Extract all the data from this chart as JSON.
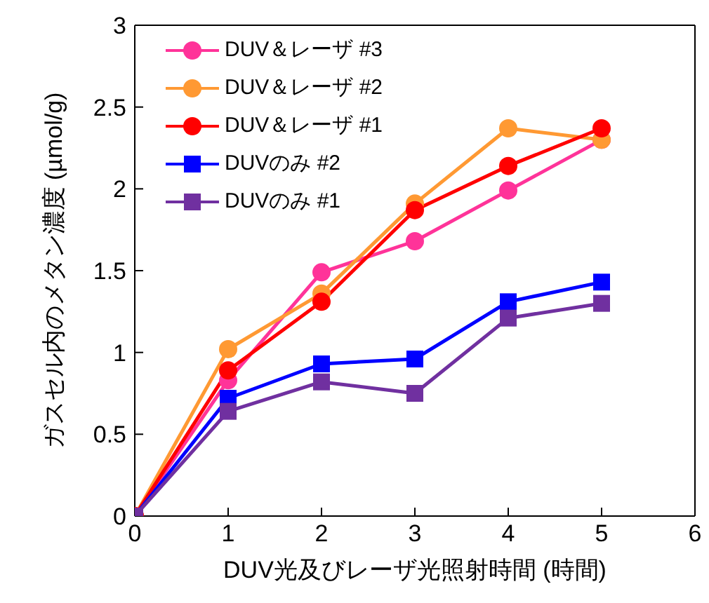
{
  "chart_data": {
    "type": "line",
    "xlabel": "DUV光及びレーザ光照射時間 (時間)",
    "ylabel": "ガスセル内のメタン濃度 (µmol/g)",
    "x": [
      0,
      1,
      2,
      3,
      4,
      5
    ],
    "xlim": [
      0,
      6
    ],
    "xticks": [
      0,
      1,
      2,
      3,
      4,
      5,
      6
    ],
    "ylim": [
      0,
      3
    ],
    "yticks": [
      0,
      0.5,
      1,
      1.5,
      2,
      2.5,
      3
    ],
    "grid": false,
    "legend": "top left",
    "line_style": "solid",
    "series": [
      {
        "name": "DUV＆レーザ #3",
        "color": "#ff3399",
        "marker": "circle",
        "values": [
          0,
          0.83,
          1.49,
          1.68,
          1.99,
          2.3
        ]
      },
      {
        "name": "DUV＆レーザ #2",
        "color": "#ff9933",
        "marker": "circle",
        "values": [
          0,
          1.02,
          1.36,
          1.91,
          2.37,
          2.3
        ]
      },
      {
        "name": "DUV＆レーザ #1",
        "color": "#ff0000",
        "marker": "circle",
        "values": [
          0,
          0.89,
          1.31,
          1.87,
          2.14,
          2.37
        ]
      },
      {
        "name": "DUVのみ #2",
        "color": "#0000ff",
        "marker": "square",
        "values": [
          0,
          0.72,
          0.93,
          0.96,
          1.31,
          1.43
        ]
      },
      {
        "name": "DUVのみ #1",
        "color": "#7030a0",
        "marker": "square",
        "values": [
          0,
          0.64,
          0.82,
          0.75,
          1.21,
          1.3
        ]
      }
    ]
  }
}
